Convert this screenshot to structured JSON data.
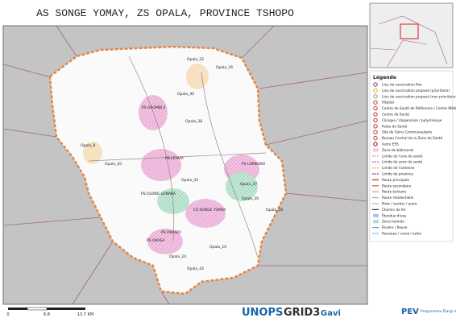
{
  "header": {
    "title": "AS SONGE YOMAY, ZS OPALA, PROVINCE TSHOPO"
  },
  "legend": {
    "title": "Légende",
    "items": [
      "Lieu de vaccination fixe",
      "Lieu de vaccination proposé (prioritaire)",
      "Lieu de vaccination proposé (non prioritaire)",
      "Hôpital",
      "Centre de Santé de Référence / Centre Médical",
      "Centre de Santé",
      "Clinique / dispensaire / polyclinique",
      "Poste de Santé",
      "Site de Soins Communautaire",
      "Bureau Central de la Zone de Santé",
      "Autre ESS",
      "Zone de bâtiments",
      "Limite de l'aire de santé",
      "Limite de zone de santé",
      "Limite de l'antenne",
      "Limite de province",
      "Route principale",
      "Route secondaire",
      "Route tertiaire",
      "Route résidentielle",
      "Piste / sentier / autre",
      "Chemin de fer",
      "Étendue d'eau",
      "Zone humide",
      "Rivière / fleuve",
      "Ruisseau / canal / autre"
    ]
  },
  "map": {
    "labels": [
      "Opala_22",
      "Opala_16",
      "Opala_40",
      "PS OSOMBI 2",
      "Opala_38",
      "Opala_8",
      "Opala_20",
      "PS LEYAYA",
      "PS LOMBAKO",
      "Opala_43",
      "PS OLONG LONAKA",
      "CS SONGE YOMAY",
      "Opala_37",
      "Opala_26",
      "Opala_28",
      "PS OKANDI",
      "PS OKASA",
      "Opala_24",
      "Opala_10",
      "Opala_42"
    ]
  },
  "scale": {
    "labels": [
      "0",
      "6.8",
      "13.7 KM"
    ]
  },
  "logos": [
    "UNOPS",
    "GRID3",
    "Gavi",
    "PEV",
    "Programme Élargi de Vaccination"
  ]
}
